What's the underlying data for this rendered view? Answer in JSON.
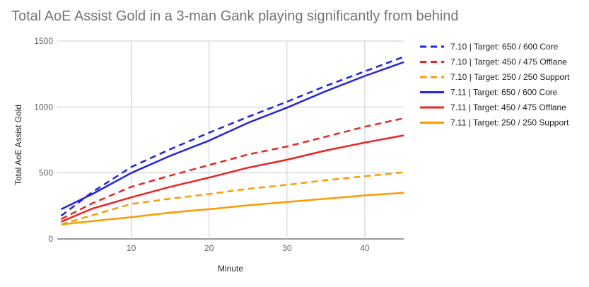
{
  "chart_data": {
    "type": "line",
    "title": "Total AoE Assist Gold in a 3-man Gank playing significantly from behind",
    "xlabel": "Minute",
    "ylabel": "Total AoE Assist Gold",
    "xlim": [
      0.5,
      45
    ],
    "ylim": [
      0,
      1500
    ],
    "xticks": [
      10,
      20,
      30,
      40
    ],
    "yticks": [
      0,
      500,
      1000,
      1500
    ],
    "grid": true,
    "legend_position": "right",
    "x": [
      1,
      5,
      10,
      15,
      20,
      25,
      30,
      35,
      40,
      45
    ],
    "series": [
      {
        "name": "7.10 | Target: 650 / 600 Core",
        "color": "#2222ee",
        "dash": true,
        "values": [
          175,
          355,
          545,
          680,
          805,
          925,
          1040,
          1160,
          1270,
          1380
        ]
      },
      {
        "name": "7.10 | Target: 450 / 475 Offlane",
        "color": "#ee2222",
        "dash": true,
        "values": [
          150,
          270,
          395,
          480,
          560,
          640,
          700,
          775,
          850,
          915
        ]
      },
      {
        "name": "7.10 | Target: 250 / 250 Support",
        "color": "#ff9900",
        "dash": true,
        "values": [
          110,
          180,
          265,
          305,
          340,
          380,
          410,
          445,
          475,
          505
        ]
      },
      {
        "name": "7.11 | Target: 650 / 600 Core",
        "color": "#2222ee",
        "dash": false,
        "values": [
          225,
          340,
          500,
          630,
          745,
          880,
          995,
          1120,
          1235,
          1340
        ]
      },
      {
        "name": "7.11 | Target: 450 / 475 Offlane",
        "color": "#ee2222",
        "dash": false,
        "values": [
          130,
          230,
          315,
          395,
          465,
          540,
          600,
          670,
          730,
          785
        ]
      },
      {
        "name": "7.11 | Target: 250 / 250 Support",
        "color": "#ff9900",
        "dash": false,
        "values": [
          110,
          135,
          165,
          200,
          225,
          255,
          280,
          305,
          330,
          350
        ]
      }
    ]
  }
}
